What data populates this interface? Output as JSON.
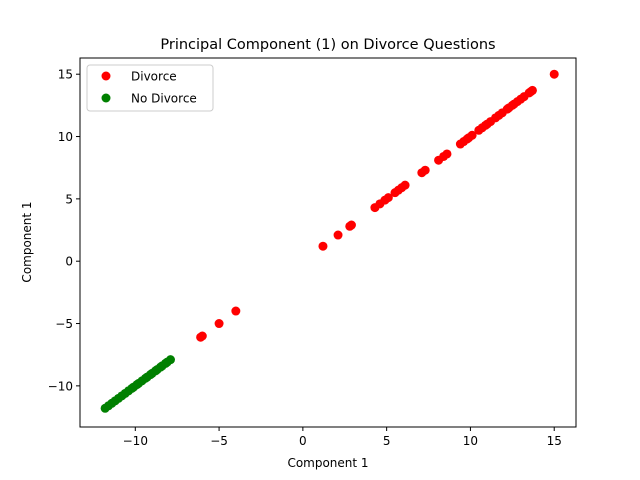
{
  "chart_data": {
    "type": "scatter",
    "title": "Principal Component (1) on Divorce Questions",
    "xlabel": "Component 1",
    "ylabel": "Component 1",
    "xlim": [
      -13.3,
      16.3
    ],
    "ylim": [
      -13.3,
      16.3
    ],
    "xticks": [
      {
        "value": -10,
        "label": "−10"
      },
      {
        "value": -5,
        "label": "−5"
      },
      {
        "value": 0,
        "label": "0"
      },
      {
        "value": 5,
        "label": "5"
      },
      {
        "value": 10,
        "label": "10"
      },
      {
        "value": 15,
        "label": "15"
      }
    ],
    "yticks": [
      {
        "value": -10,
        "label": "−10"
      },
      {
        "value": -5,
        "label": "−5"
      },
      {
        "value": 0,
        "label": "0"
      },
      {
        "value": 5,
        "label": "5"
      },
      {
        "value": 10,
        "label": "10"
      },
      {
        "value": 15,
        "label": "15"
      }
    ],
    "grid": false,
    "legend_position": "top-left",
    "series": [
      {
        "name": "Divorce",
        "color": "#ff0000",
        "points": [
          [
            15.0,
            15.0
          ],
          [
            13.7,
            13.7
          ],
          [
            13.6,
            13.6
          ],
          [
            13.5,
            13.5
          ],
          [
            13.2,
            13.2
          ],
          [
            13.0,
            13.0
          ],
          [
            12.8,
            12.8
          ],
          [
            12.6,
            12.6
          ],
          [
            12.5,
            12.5
          ],
          [
            12.3,
            12.3
          ],
          [
            12.2,
            12.2
          ],
          [
            11.9,
            11.9
          ],
          [
            11.7,
            11.7
          ],
          [
            11.5,
            11.5
          ],
          [
            11.2,
            11.2
          ],
          [
            11.0,
            11.0
          ],
          [
            10.9,
            10.9
          ],
          [
            10.7,
            10.7
          ],
          [
            10.5,
            10.5
          ],
          [
            10.1,
            10.1
          ],
          [
            9.9,
            9.9
          ],
          [
            9.8,
            9.8
          ],
          [
            9.6,
            9.6
          ],
          [
            9.4,
            9.4
          ],
          [
            8.6,
            8.6
          ],
          [
            8.4,
            8.4
          ],
          [
            8.1,
            8.1
          ],
          [
            7.3,
            7.3
          ],
          [
            7.1,
            7.1
          ],
          [
            6.1,
            6.1
          ],
          [
            5.9,
            5.9
          ],
          [
            5.7,
            5.7
          ],
          [
            5.5,
            5.5
          ],
          [
            5.1,
            5.1
          ],
          [
            4.9,
            4.9
          ],
          [
            4.6,
            4.6
          ],
          [
            4.3,
            4.3
          ],
          [
            2.9,
            2.9
          ],
          [
            2.8,
            2.8
          ],
          [
            2.1,
            2.1
          ],
          [
            1.2,
            1.2
          ],
          [
            -4.0,
            -4.0
          ],
          [
            -5.0,
            -5.0
          ],
          [
            -6.0,
            -6.0
          ],
          [
            -6.1,
            -6.1
          ]
        ]
      },
      {
        "name": "No Divorce",
        "color": "#008000",
        "points": [
          [
            -7.9,
            -7.9
          ],
          [
            -8.1,
            -8.1
          ],
          [
            -8.2,
            -8.2
          ],
          [
            -8.4,
            -8.4
          ],
          [
            -8.5,
            -8.5
          ],
          [
            -8.7,
            -8.7
          ],
          [
            -8.8,
            -8.8
          ],
          [
            -9.0,
            -9.0
          ],
          [
            -9.1,
            -9.1
          ],
          [
            -9.3,
            -9.3
          ],
          [
            -9.4,
            -9.4
          ],
          [
            -9.6,
            -9.6
          ],
          [
            -9.8,
            -9.8
          ],
          [
            -9.9,
            -9.9
          ],
          [
            -10.1,
            -10.1
          ],
          [
            -10.2,
            -10.2
          ],
          [
            -10.4,
            -10.4
          ],
          [
            -10.6,
            -10.6
          ],
          [
            -10.8,
            -10.8
          ],
          [
            -11.0,
            -11.0
          ],
          [
            -11.2,
            -11.2
          ],
          [
            -11.4,
            -11.4
          ],
          [
            -11.6,
            -11.6
          ],
          [
            -11.8,
            -11.8
          ]
        ]
      }
    ]
  }
}
